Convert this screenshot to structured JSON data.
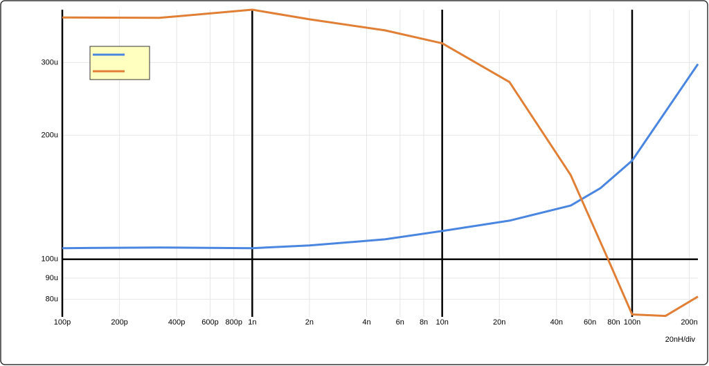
{
  "chart_data": {
    "type": "line",
    "x_scale": "log",
    "y_scale": "log",
    "grid": true,
    "legend": "upper-left",
    "annotation": "20nH/div",
    "x": [
      1e-10,
      3.24e-10,
      1e-09,
      2e-09,
      5e-09,
      1e-08,
      2.26e-08,
      4.75e-08,
      6.8e-08,
      1e-07,
      2.22e-07
    ],
    "series": [
      {
        "color": "#4a86e0",
        "values": [
          0.0001064,
          0.0001068,
          0.0001064,
          0.000108,
          0.0001118,
          0.0001171,
          0.0001241,
          0.000135,
          0.0001487,
          0.0001735,
          0.0002975
        ]
      },
      {
        "color": "#e07f35",
        "x": [
          1e-10,
          3.24e-10,
          1e-09,
          2e-09,
          5e-09,
          1e-08,
          2.26e-08,
          4.75e-08,
          7.4e-08,
          1e-07,
          1.5e-07,
          2.22e-07
        ],
        "values": [
          0.000386,
          0.000385,
          0.000403,
          0.000382,
          0.000359,
          0.000334,
          0.000269,
          0.00016,
          0.000101,
          7.35e-05,
          7.29e-05,
          8.12e-05
        ]
      }
    ],
    "xlim": [
      1e-10,
      2.22e-07
    ],
    "ylim": [
      7.25e-05,
      0.000403
    ],
    "xticks": [
      {
        "value": 1e-10,
        "label": "100p"
      },
      {
        "value": 2e-10,
        "label": "200p"
      },
      {
        "value": 4e-10,
        "label": "400p"
      },
      {
        "value": 6e-10,
        "label": "600p"
      },
      {
        "value": 8e-10,
        "label": "800p"
      },
      {
        "value": 1e-09,
        "label": "1n"
      },
      {
        "value": 2e-09,
        "label": "2n"
      },
      {
        "value": 4e-09,
        "label": "4n"
      },
      {
        "value": 6e-09,
        "label": "6n"
      },
      {
        "value": 8e-09,
        "label": "8n"
      },
      {
        "value": 1e-08,
        "label": "10n"
      },
      {
        "value": 2e-08,
        "label": "20n"
      },
      {
        "value": 4e-08,
        "label": "40n"
      },
      {
        "value": 6e-08,
        "label": "60n"
      },
      {
        "value": 8e-08,
        "label": "80n"
      },
      {
        "value": 1e-07,
        "label": "100n"
      },
      {
        "value": 2e-07,
        "label": "200n"
      }
    ],
    "yticks": [
      {
        "value": 8e-05,
        "label": "80u"
      },
      {
        "value": 9e-05,
        "label": "90u"
      },
      {
        "value": 0.0001,
        "label": "100u"
      },
      {
        "value": 0.0002,
        "label": "200u"
      },
      {
        "value": 0.0003,
        "label": "300u"
      }
    ]
  }
}
